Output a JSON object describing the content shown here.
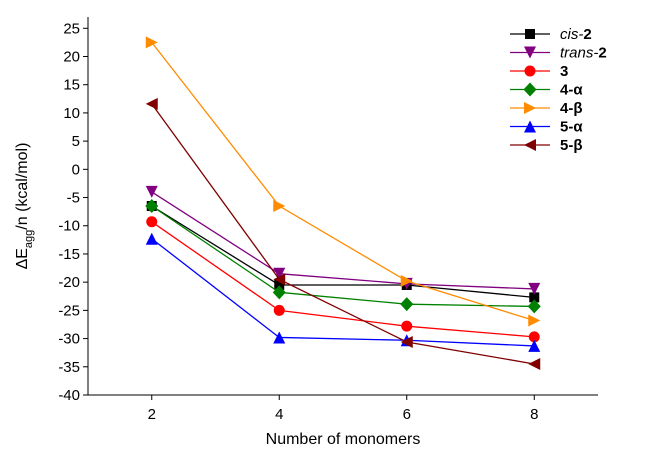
{
  "chart_data": {
    "type": "line",
    "xlabel": "Number of monomers",
    "ylabel": {
      "prefix": "ΔE",
      "subscript": "agg",
      "suffix": "/n (kcal/mol)"
    },
    "x": [
      2,
      4,
      6,
      8
    ],
    "xlim": [
      1,
      9
    ],
    "xticks": [
      2,
      4,
      6,
      8
    ],
    "ylim": [
      -40,
      27
    ],
    "yticks": [
      25,
      20,
      15,
      10,
      5,
      0,
      -5,
      -10,
      -15,
      -20,
      -25,
      -30,
      -35,
      -40
    ],
    "grid": false,
    "legend_position": "top-right",
    "series": [
      {
        "name_parts": [
          {
            "text": "cis-",
            "style": "italic"
          },
          {
            "text": "2",
            "style": "bold"
          }
        ],
        "marker": "square",
        "color": "#000000",
        "values": [
          -6.5,
          -20.5,
          -20.5,
          -22.7
        ]
      },
      {
        "name_parts": [
          {
            "text": "trans-",
            "style": "italic"
          },
          {
            "text": "2",
            "style": "bold"
          }
        ],
        "marker": "triangle-down",
        "color": "#800080",
        "values": [
          -4.0,
          -18.5,
          -20.3,
          -21.2
        ]
      },
      {
        "name_parts": [
          {
            "text": "3",
            "style": "bold"
          }
        ],
        "marker": "circle",
        "color": "#ff0000",
        "values": [
          -9.3,
          -25.0,
          -27.8,
          -29.7
        ]
      },
      {
        "name_parts": [
          {
            "text": "4-α",
            "style": "bold"
          }
        ],
        "marker": "diamond",
        "color": "#008000",
        "values": [
          -6.5,
          -21.8,
          -23.9,
          -24.3
        ]
      },
      {
        "name_parts": [
          {
            "text": "4-β",
            "style": "bold"
          }
        ],
        "marker": "triangle-right",
        "color": "#ff8c00",
        "values": [
          22.5,
          -6.5,
          -19.8,
          -26.8
        ]
      },
      {
        "name_parts": [
          {
            "text": "5-α",
            "style": "bold"
          }
        ],
        "marker": "triangle-up",
        "color": "#0000ff",
        "values": [
          -12.3,
          -29.8,
          -30.3,
          -31.3
        ]
      },
      {
        "name_parts": [
          {
            "text": "5-β",
            "style": "bold"
          }
        ],
        "marker": "triangle-left",
        "color": "#800000",
        "values": [
          11.6,
          -19.5,
          -30.6,
          -34.5
        ]
      }
    ]
  }
}
